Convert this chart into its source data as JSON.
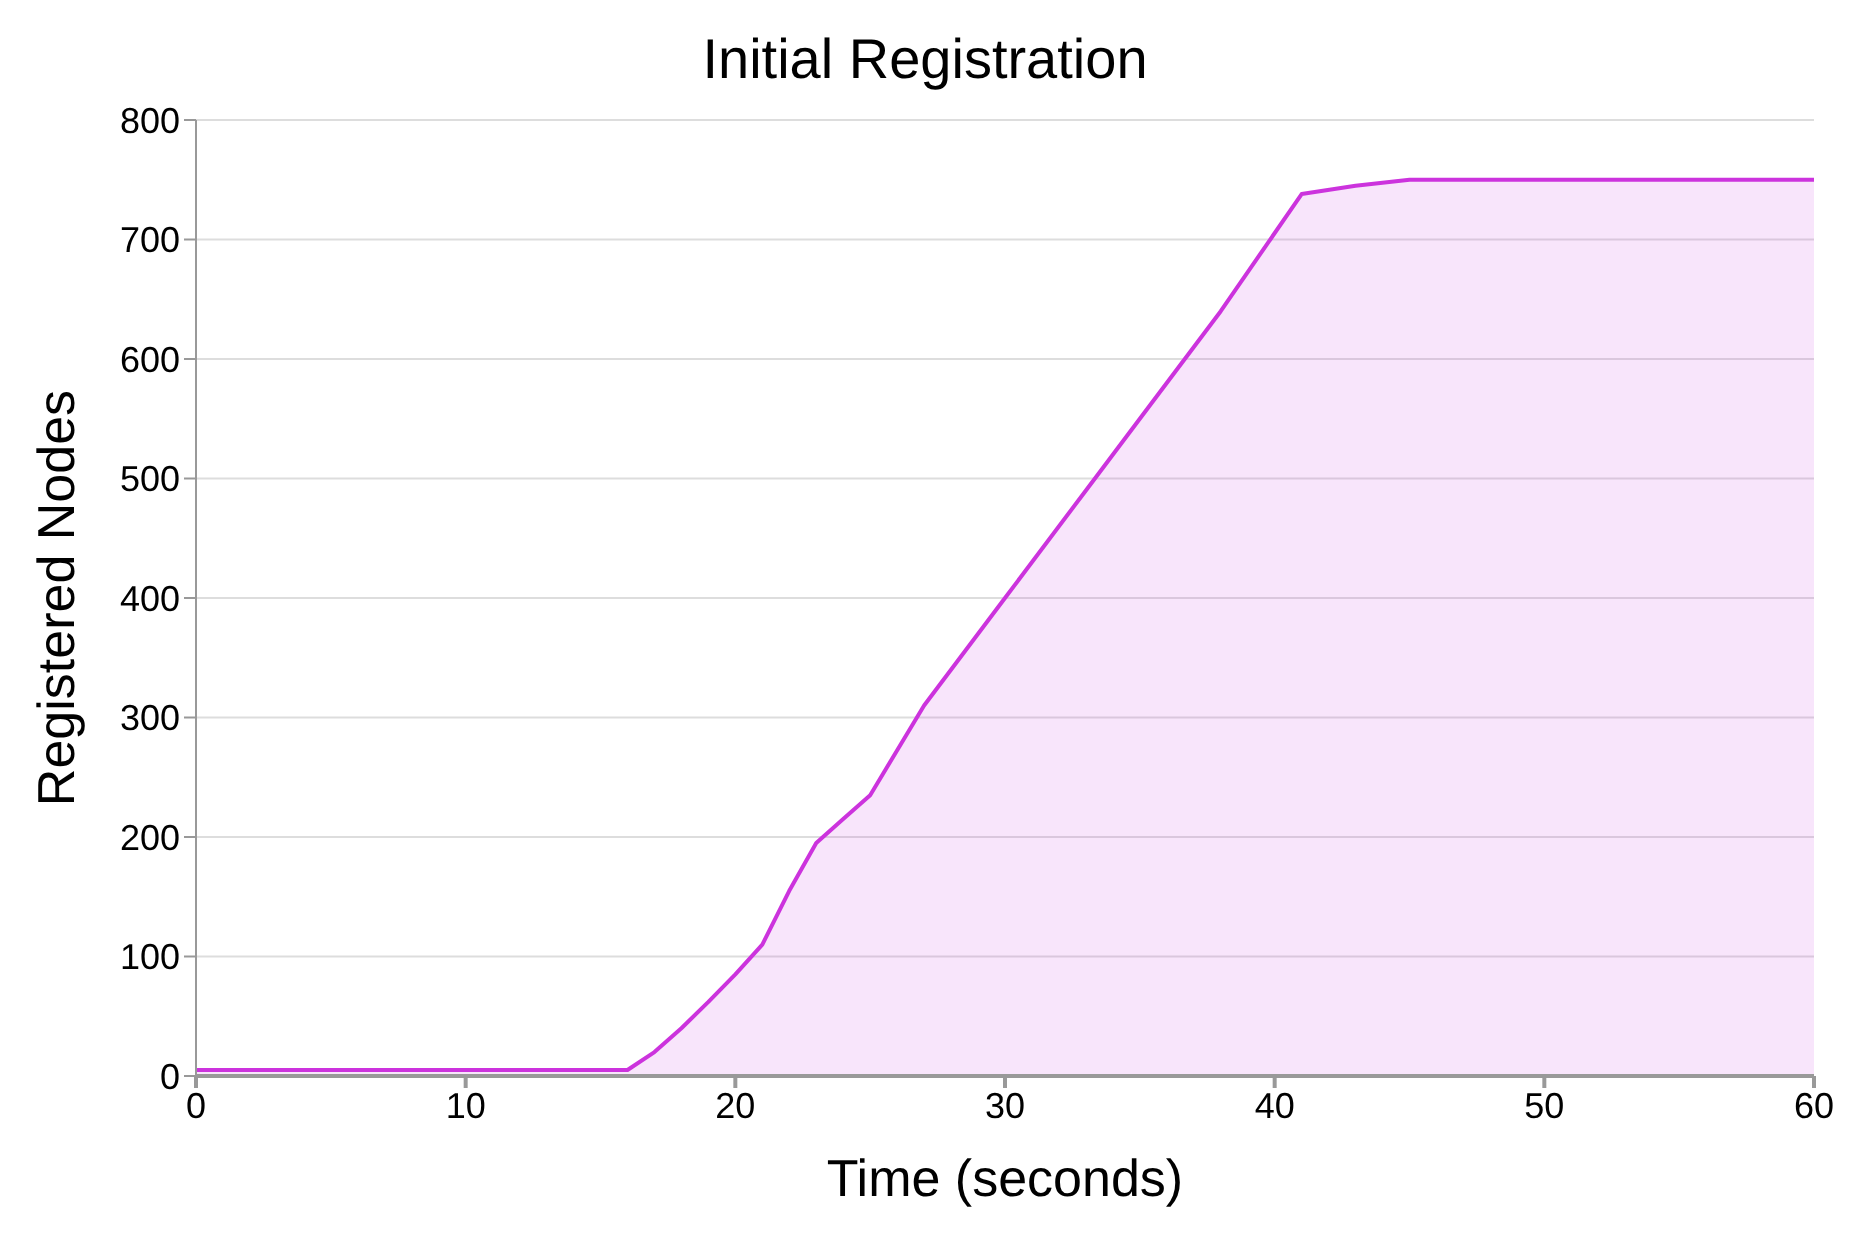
{
  "chart_data": {
    "type": "area",
    "title": "Initial Registration",
    "xlabel": "Time (seconds)",
    "ylabel": "Registered Nodes",
    "x": [
      0,
      16,
      17,
      18,
      19,
      20,
      21,
      22,
      23,
      24,
      25,
      27,
      30,
      33,
      35,
      38,
      41,
      43,
      45,
      60
    ],
    "series": [
      {
        "color": "#cc33dd",
        "values": [
          5,
          5,
          20,
          40,
          62,
          85,
          110,
          155,
          195,
          215,
          235,
          310,
          400,
          490,
          550,
          640,
          738,
          745,
          750,
          750
        ]
      }
    ],
    "xlim": [
      0,
      60
    ],
    "xticks": [
      0,
      10,
      20,
      30,
      40,
      50,
      60
    ],
    "ylim": [
      0,
      800
    ],
    "yticks": [
      0,
      100,
      200,
      300,
      400,
      500,
      600,
      700,
      800
    ],
    "grid": "y",
    "legend": false
  }
}
